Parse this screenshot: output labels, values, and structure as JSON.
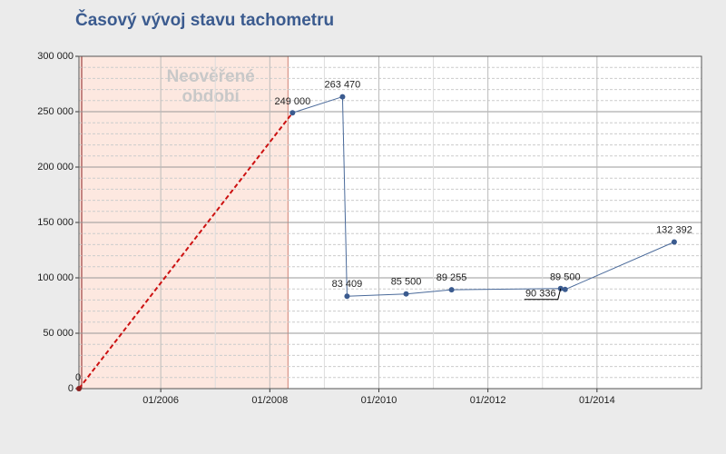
{
  "chart_data": {
    "type": "line",
    "title": "Časový vývoj stavu tachometru",
    "annotation": "Neověřené období",
    "shaded_until": "2008-05",
    "x": [
      "2004-07",
      "2008-06",
      "2009-05",
      "2009-06",
      "2010-07",
      "2011-05",
      "2013-05",
      "2013-06",
      "2015-06"
    ],
    "series": [
      {
        "color": "#4a6a9a",
        "values": [
          0,
          249000,
          263470,
          83409,
          85500,
          89255,
          90336,
          89500,
          132392
        ],
        "value_labels": [
          "0",
          "249 000",
          "263 470",
          "83 409",
          "85 500",
          "89 255",
          "90 336",
          "89 500",
          "132 392"
        ]
      }
    ],
    "dashed_segments": [
      0
    ],
    "dashed_color": "#cc1111",
    "shade_color": "#fde8e0",
    "xlim": [
      "2004-07",
      "2015-12"
    ],
    "xticks": [
      {
        "value": "2006-01",
        "label": "01/2006"
      },
      {
        "value": "2008-01",
        "label": "01/2008"
      },
      {
        "value": "2010-01",
        "label": "01/2010"
      },
      {
        "value": "2012-01",
        "label": "01/2012"
      },
      {
        "value": "2014-01",
        "label": "01/2014"
      }
    ],
    "ylim": [
      0,
      300000
    ],
    "yticks": [
      0,
      {
        "value": 50000,
        "label": "50 000"
      },
      {
        "value": 100000,
        "label": "100 000"
      },
      {
        "value": 150000,
        "label": "150 000"
      },
      {
        "value": 200000,
        "label": "200 000"
      },
      {
        "value": 250000,
        "label": "250 000"
      },
      {
        "value": 300000,
        "label": "300 000"
      }
    ],
    "grid": true,
    "minor_per_major": 5
  }
}
